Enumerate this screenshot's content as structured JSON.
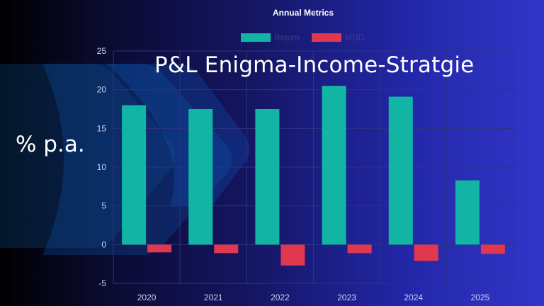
{
  "overlay": {
    "title": "P&L Enigma-Income-Stratgie",
    "unit_label": "% p.a."
  },
  "colors": {
    "return": "#12b5a3",
    "mdd": "#e0384f",
    "grid": "#2f3380",
    "tick_text": "#d0d2ee",
    "title_text": "#ffffff",
    "legend_text": "#3c3f84"
  },
  "chart_data": {
    "type": "bar",
    "title": "Annual Metrics",
    "categories": [
      "2020",
      "2021",
      "2022",
      "2023",
      "2024",
      "2025"
    ],
    "series": [
      {
        "name": "Return",
        "values": [
          18.0,
          17.5,
          17.5,
          20.5,
          19.1,
          8.3
        ]
      },
      {
        "name": "MDD",
        "values": [
          -1.0,
          -1.1,
          -2.7,
          -1.1,
          -2.1,
          -1.2
        ]
      }
    ],
    "yticks": [
      "-5",
      "0",
      "5",
      "10",
      "15",
      "20",
      "25"
    ],
    "ylim": [
      -5,
      25
    ],
    "xlabel": "",
    "ylabel": "",
    "grid": true,
    "legend": "top-center"
  }
}
